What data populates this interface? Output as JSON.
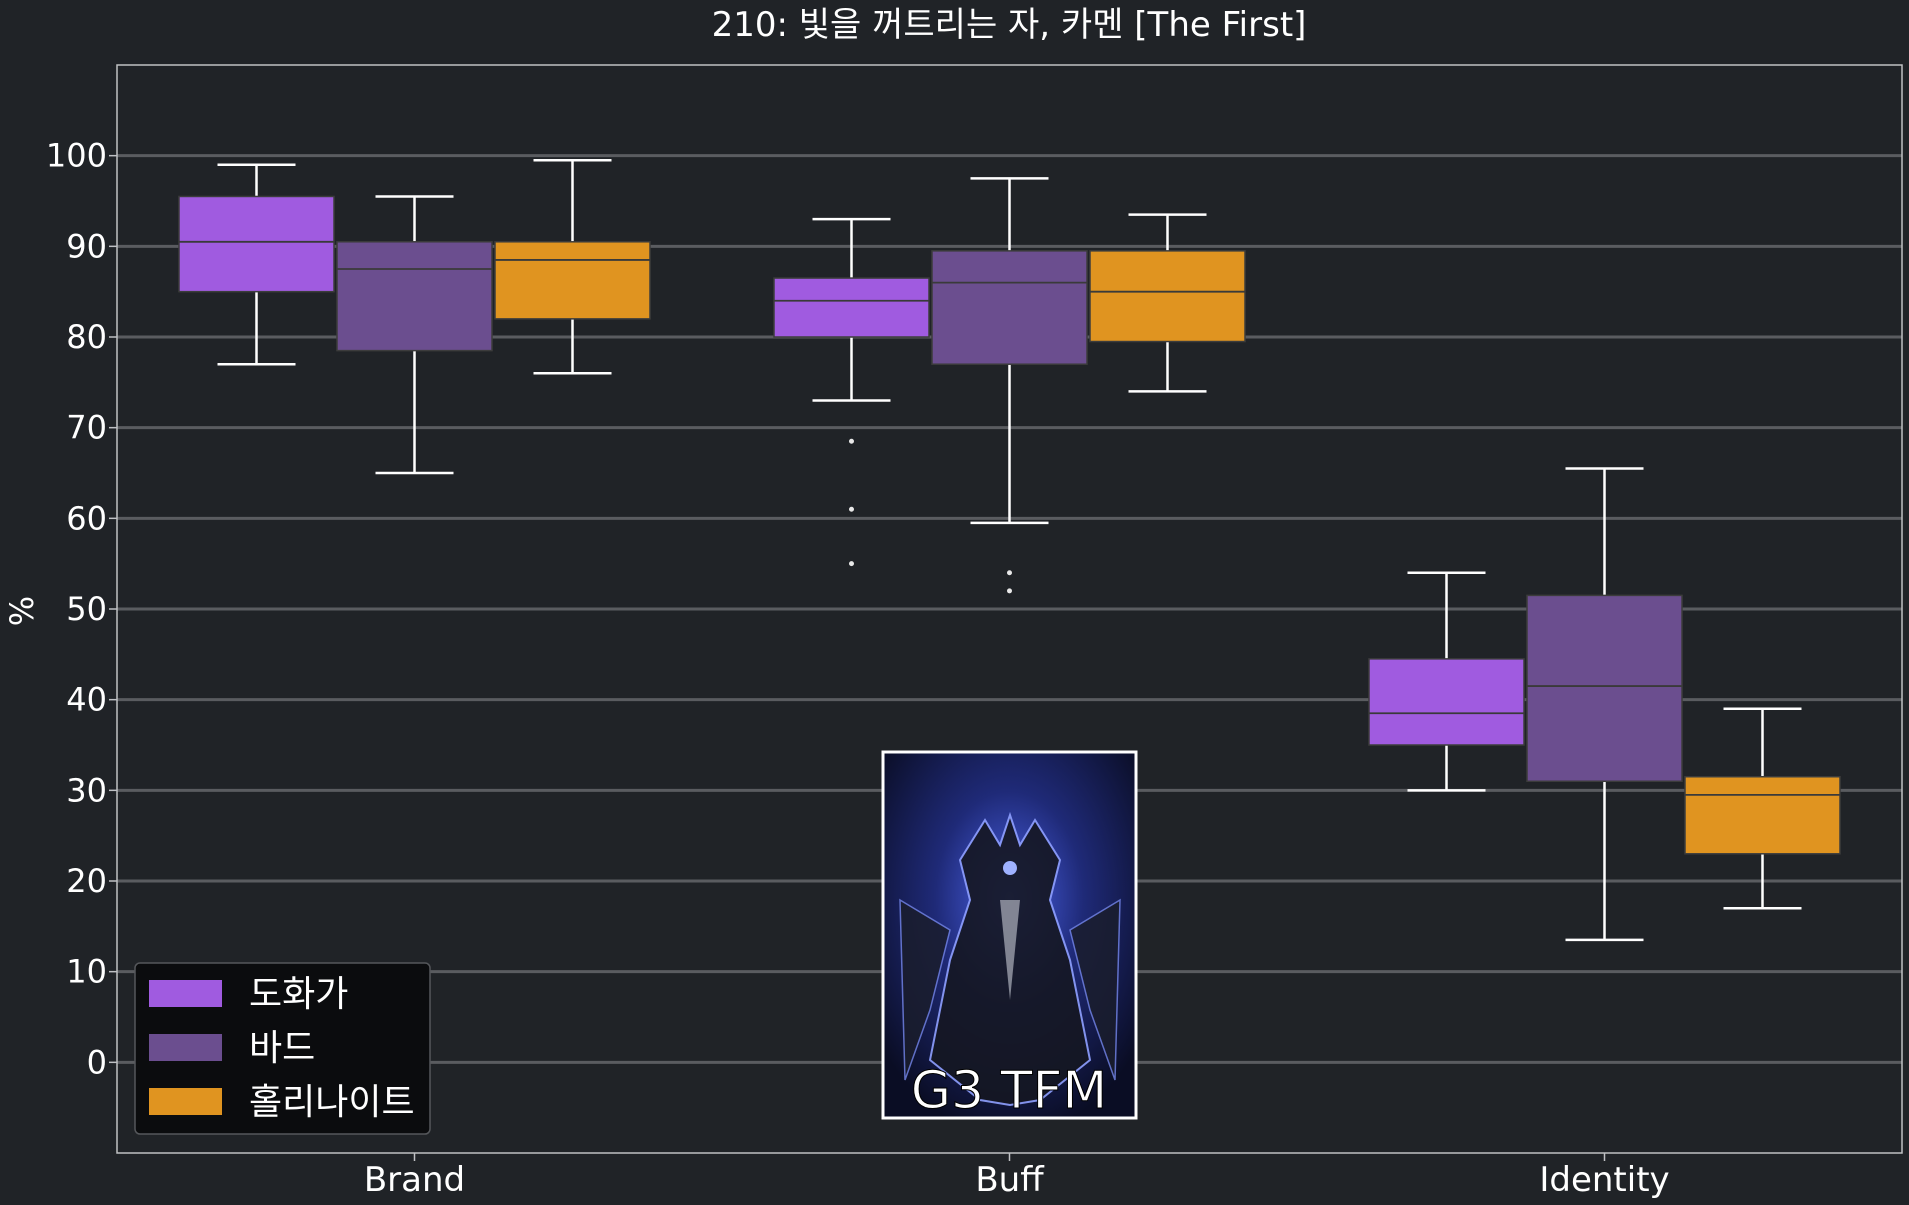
{
  "colors": {
    "background": "#202327",
    "grid": "#5a5c60",
    "whisker": "#ffffff",
    "median": "#3a3a3a",
    "legend_bg": "#0b0c0e"
  },
  "thumbnail": {
    "caption": "G3 TFM"
  },
  "chart_data": {
    "type": "box",
    "title": "210: 빛을 꺼트리는 자, 카멘 [The First]",
    "xlabel": "",
    "ylabel": "%",
    "ylim": [
      -10,
      110
    ],
    "yticks": [
      0,
      10,
      20,
      30,
      40,
      50,
      60,
      70,
      80,
      90,
      100
    ],
    "grid": true,
    "legend_position": "lower-left",
    "categories": [
      "Brand",
      "Buff",
      "Identity"
    ],
    "series": [
      {
        "name": "도화가",
        "color": "#a05be0",
        "boxes": [
          {
            "whislo": 77,
            "q1": 85,
            "med": 90.5,
            "q3": 95.5,
            "whishi": 99,
            "fliers": []
          },
          {
            "whislo": 73,
            "q1": 80,
            "med": 84,
            "q3": 86.5,
            "whishi": 93,
            "fliers": [
              68.5,
              61,
              55
            ]
          },
          {
            "whislo": 30,
            "q1": 35,
            "med": 38.5,
            "q3": 44.5,
            "whishi": 54,
            "fliers": []
          }
        ]
      },
      {
        "name": "바드",
        "color": "#6b4e8f",
        "boxes": [
          {
            "whislo": 65,
            "q1": 78.5,
            "med": 87.5,
            "q3": 90.5,
            "whishi": 95.5,
            "fliers": []
          },
          {
            "whislo": 59.5,
            "q1": 77,
            "med": 86,
            "q3": 89.5,
            "whishi": 97.5,
            "fliers": [
              54,
              52
            ]
          },
          {
            "whislo": 13.5,
            "q1": 31,
            "med": 41.5,
            "q3": 51.5,
            "whishi": 65.5,
            "fliers": []
          }
        ]
      },
      {
        "name": "홀리나이트",
        "color": "#e09420",
        "boxes": [
          {
            "whislo": 76,
            "q1": 82,
            "med": 88.5,
            "q3": 90.5,
            "whishi": 99.5,
            "fliers": []
          },
          {
            "whislo": 74,
            "q1": 79.5,
            "med": 85,
            "q3": 89.5,
            "whishi": 93.5,
            "fliers": []
          },
          {
            "whislo": 17,
            "q1": 23,
            "med": 29.5,
            "q3": 31.5,
            "whishi": 39,
            "fliers": []
          }
        ]
      }
    ]
  }
}
